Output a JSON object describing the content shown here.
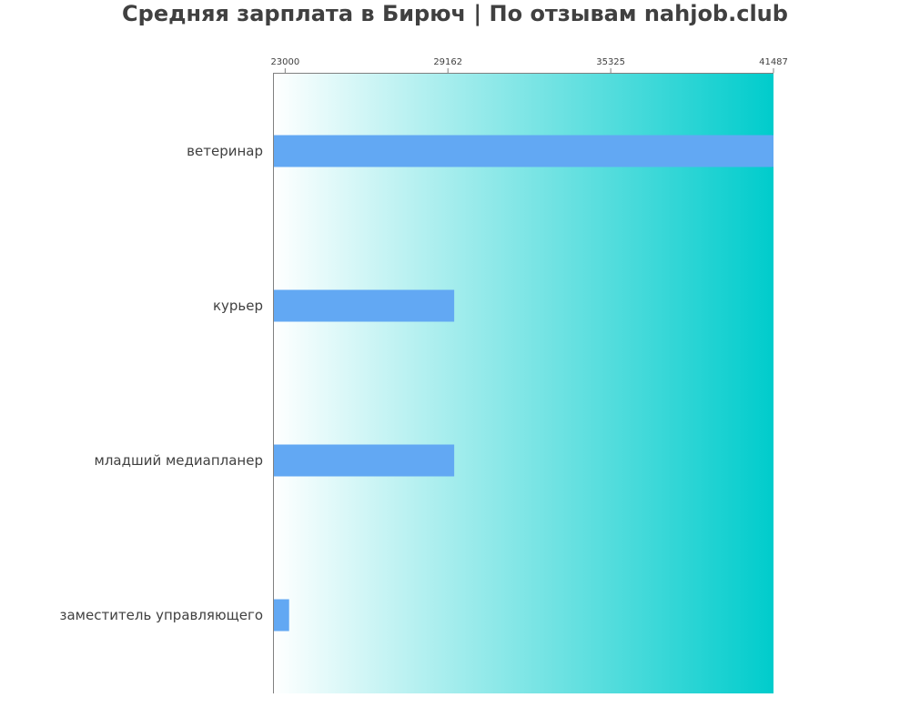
{
  "chart_data": {
    "type": "bar",
    "orientation": "horizontal",
    "title": "Средняя зарплата в Бирюч | По отзывам nahjob.club",
    "categories": [
      "ветеринар",
      "курьер",
      "младший медиапланер",
      "заместитель управляющего"
    ],
    "values": [
      41487,
      29400,
      29400,
      23150
    ],
    "xticks": [
      23000,
      29162,
      35325,
      41487
    ],
    "xlim": [
      22540,
      41487
    ],
    "xlabel": "",
    "ylabel": "",
    "grid": false,
    "legend": "none",
    "colors": {
      "bar": "#62a8f3",
      "gradient_start": "#ffffff",
      "gradient_end": "#00cccc",
      "axis": "#808080",
      "text": "#404040"
    }
  }
}
